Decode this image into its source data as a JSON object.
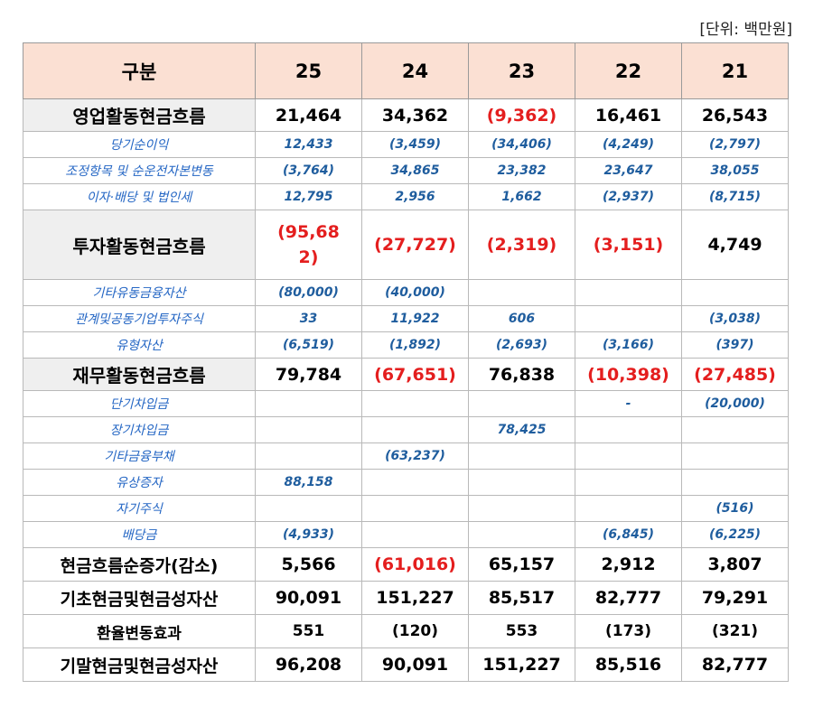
{
  "unit_label": "[단위: 백만원]",
  "header": {
    "label": "구분",
    "years": [
      "25",
      "24",
      "23",
      "22",
      "21"
    ]
  },
  "rows": {
    "operating": {
      "label": "영업활동현금흐름",
      "values": [
        "21,464",
        "34,362",
        "(9,362)",
        "16,461",
        "26,543"
      ]
    },
    "net_income": {
      "label": "당기순이익",
      "values": [
        "12,433",
        "(3,459)",
        "(34,406)",
        "(4,249)",
        "(2,797)"
      ]
    },
    "adjustments": {
      "label": "조정항목 및 순운전자본변동",
      "values": [
        "(3,764)",
        "34,865",
        "23,382",
        "23,647",
        "38,055"
      ]
    },
    "interest_tax": {
      "label": "이자·배당 및 법인세",
      "values": [
        "12,795",
        "2,956",
        "1,662",
        "(2,937)",
        "(8,715)"
      ]
    },
    "investing": {
      "label": "투자활동현금흐름",
      "values": [
        "(95,682)",
        "(27,727)",
        "(2,319)",
        "(3,151)",
        "4,749"
      ]
    },
    "other_fin_assets": {
      "label": "기타유동금융자산",
      "values": [
        "(80,000)",
        "(40,000)",
        "",
        "",
        ""
      ]
    },
    "affiliates": {
      "label": "관계및공동기업투자주식",
      "values": [
        "33",
        "11,922",
        "606",
        "",
        "(3,038)"
      ]
    },
    "tangible": {
      "label": "유형자산",
      "values": [
        "(6,519)",
        "(1,892)",
        "(2,693)",
        "(3,166)",
        "(397)"
      ]
    },
    "financing": {
      "label": "재무활동현금흐름",
      "values": [
        "79,784",
        "(67,651)",
        "76,838",
        "(10,398)",
        "(27,485)"
      ]
    },
    "short_borrow": {
      "label": "단기차입금",
      "values": [
        "",
        "",
        "",
        "-",
        "(20,000)"
      ]
    },
    "long_borrow": {
      "label": "장기차입금",
      "values": [
        "",
        "",
        "78,425",
        "",
        ""
      ]
    },
    "other_fin_liab": {
      "label": "기타금융부채",
      "values": [
        "",
        "(63,237)",
        "",
        "",
        ""
      ]
    },
    "capital_increase": {
      "label": "유상증자",
      "values": [
        "88,158",
        "",
        "",
        "",
        ""
      ]
    },
    "treasury": {
      "label": "자기주식",
      "values": [
        "",
        "",
        "",
        "",
        "(516)"
      ]
    },
    "dividends": {
      "label": "배당금",
      "values": [
        "(4,933)",
        "",
        "",
        "(6,845)",
        "(6,225)"
      ]
    },
    "net_change": {
      "label": "현금흐름순증가(감소)",
      "values": [
        "5,566",
        "(61,016)",
        "65,157",
        "2,912",
        "3,807"
      ]
    },
    "beginning": {
      "label": "기초현금및현금성자산",
      "values": [
        "90,091",
        "151,227",
        "85,517",
        "82,777",
        "79,291"
      ]
    },
    "fx": {
      "label": "환율변동효과",
      "values": [
        "551",
        "(120)",
        "553",
        "(173)",
        "(321)"
      ]
    },
    "ending": {
      "label": "기말현금및현금성자산",
      "values": [
        "96,208",
        "90,091",
        "151,227",
        "85,516",
        "82,777"
      ]
    }
  },
  "colors": {
    "header_bg": "#fbe0d3",
    "major_label_bg": "#efefef",
    "negative": "#e41e1e",
    "minor_text": "#1f5d9e"
  }
}
